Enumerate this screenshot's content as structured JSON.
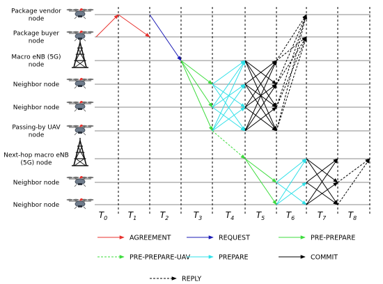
{
  "nodes": [
    {
      "label_lines": [
        "Package vendor",
        "node"
      ],
      "icon": "drone-icon"
    },
    {
      "label_lines": [
        "Package buyer",
        "node"
      ],
      "icon": "drone-icon"
    },
    {
      "label_lines": [
        "Macro eNB (5G)",
        "node"
      ],
      "icon": "tower-icon"
    },
    {
      "label_lines": [
        "Neighbor node"
      ],
      "icon": "drone-icon"
    },
    {
      "label_lines": [
        "Neighbor node"
      ],
      "icon": "drone-icon"
    },
    {
      "label_lines": [
        "Passing-by UAV",
        "node"
      ],
      "icon": "drone-icon"
    },
    {
      "label_lines": [
        "Next-hop macro eNB",
        "(5G) node"
      ],
      "icon": "tower-icon"
    },
    {
      "label_lines": [
        "Neighbor node"
      ],
      "icon": "drone-icon"
    },
    {
      "label_lines": [
        "Neighbor node"
      ],
      "icon": "drone-icon"
    }
  ],
  "time_slots": [
    {
      "base": "T",
      "sub": "0"
    },
    {
      "base": "T",
      "sub": "1"
    },
    {
      "base": "T",
      "sub": "2"
    },
    {
      "base": "T",
      "sub": "3"
    },
    {
      "base": "T",
      "sub": "4"
    },
    {
      "base": "T",
      "sub": "5"
    },
    {
      "base": "T",
      "sub": "6"
    },
    {
      "base": "T",
      "sub": "7"
    },
    {
      "base": "T",
      "sub": "8"
    }
  ],
  "messages": {
    "agreement": {
      "label": "AGREEMENT",
      "color": "#e8322e",
      "dashed": false
    },
    "request": {
      "label": "REQUEST",
      "color": "#1a1ab5",
      "dashed": false
    },
    "preprepare": {
      "label": "PRE-PREPARE",
      "color": "#3ddc3d",
      "dashed": false
    },
    "preprepare_uav": {
      "label": "PRE-PREPARE-UAV",
      "color": "#3ddc3d",
      "dashed": true
    },
    "prepare": {
      "label": "PREPARE",
      "color": "#2fe0e8",
      "dashed": false
    },
    "commit": {
      "label": "COMMIT",
      "color": "#000000",
      "dashed": false
    },
    "reply": {
      "label": "REPLY",
      "color": "#000000",
      "dashed": true
    }
  },
  "legend_order": [
    "agreement",
    "request",
    "preprepare",
    "preprepare_uav",
    "prepare",
    "commit",
    "reply"
  ]
}
